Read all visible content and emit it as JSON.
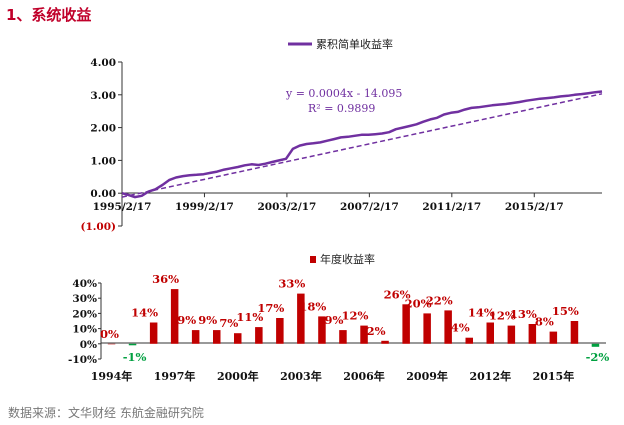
{
  "heading": "1、系统收益",
  "source_note": "数据来源：文华财经 东航金融研究院",
  "colors": {
    "heading": "#c0002a",
    "cumulative_line": "#7030a0",
    "positive_bar": "#c00000",
    "negative_bar": "#00a040",
    "positive_label": "#c00000",
    "negative_label": "#00a040",
    "neg_ylabel": "#c00000"
  },
  "chart_data": [
    {
      "type": "line",
      "legend": "累积简单收益率",
      "legend_position": "top-center",
      "equation": "y = 0.0004x   - 14.095",
      "r_squared": "R² = 0.9899",
      "x_range": [
        "1995-02-17",
        "2018-06-01"
      ],
      "ylim": [
        -1.0,
        4.0
      ],
      "y_ticks": [
        4.0,
        3.0,
        2.0,
        1.0,
        0.0,
        -1.0
      ],
      "y_tick_labels": [
        "4.00",
        "3.00",
        "2.00",
        "1.00",
        "0.00",
        "(1.00)"
      ],
      "x_tick_labels": [
        "1995/2/17",
        "1999/2/17",
        "2003/2/17",
        "2007/2/17",
        "2011/2/17",
        "2015/2/17"
      ],
      "trendline": {
        "slope_per_day": 0.0004,
        "intercept": -14.095,
        "style": "dashed"
      },
      "series": [
        {
          "name": "累积简单收益率",
          "x": [
            "1995-02-17",
            "1995-06-01",
            "1995-10-01",
            "1996-02-01",
            "1996-06-01",
            "1996-10-01",
            "1997-02-01",
            "1997-06-01",
            "1997-10-01",
            "1998-02-01",
            "1998-06-01",
            "1998-10-01",
            "1999-02-01",
            "1999-06-01",
            "1999-10-01",
            "2000-02-01",
            "2000-06-01",
            "2000-10-01",
            "2001-02-01",
            "2001-06-01",
            "2001-10-01",
            "2002-02-01",
            "2002-06-01",
            "2002-10-01",
            "2003-02-01",
            "2003-06-01",
            "2003-10-01",
            "2004-02-01",
            "2004-06-01",
            "2004-10-01",
            "2005-02-01",
            "2005-06-01",
            "2005-10-01",
            "2006-02-01",
            "2006-06-01",
            "2006-10-01",
            "2007-02-01",
            "2007-06-01",
            "2007-10-01",
            "2008-02-01",
            "2008-06-01",
            "2008-10-01",
            "2009-02-01",
            "2009-06-01",
            "2009-10-01",
            "2010-02-01",
            "2010-06-01",
            "2010-10-01",
            "2011-02-01",
            "2011-06-01",
            "2011-10-01",
            "2012-02-01",
            "2012-06-01",
            "2012-10-01",
            "2013-02-01",
            "2013-06-01",
            "2013-10-01",
            "2014-02-01",
            "2014-06-01",
            "2014-10-01",
            "2015-02-01",
            "2015-06-01",
            "2015-10-01",
            "2016-02-01",
            "2016-06-01",
            "2016-10-01",
            "2017-02-01",
            "2017-06-01",
            "2017-10-01",
            "2018-02-01",
            "2018-06-01"
          ],
          "y": [
            0.0,
            -0.05,
            -0.12,
            -0.08,
            0.05,
            0.12,
            0.25,
            0.4,
            0.48,
            0.52,
            0.55,
            0.56,
            0.58,
            0.62,
            0.66,
            0.72,
            0.76,
            0.8,
            0.85,
            0.88,
            0.86,
            0.9,
            0.95,
            1.0,
            1.05,
            1.35,
            1.45,
            1.5,
            1.52,
            1.55,
            1.6,
            1.65,
            1.7,
            1.72,
            1.75,
            1.78,
            1.78,
            1.8,
            1.82,
            1.86,
            1.95,
            2.0,
            2.05,
            2.1,
            2.18,
            2.25,
            2.3,
            2.4,
            2.45,
            2.48,
            2.55,
            2.6,
            2.62,
            2.65,
            2.68,
            2.7,
            2.72,
            2.75,
            2.78,
            2.82,
            2.85,
            2.88,
            2.9,
            2.92,
            2.95,
            2.97,
            3.0,
            3.02,
            3.05,
            3.08,
            3.1
          ]
        }
      ]
    },
    {
      "type": "bar",
      "legend": "年度收益率",
      "legend_position": "top-center",
      "ylim": [
        -10,
        40
      ],
      "y_ticks": [
        40,
        30,
        20,
        10,
        0,
        -10
      ],
      "y_tick_labels": [
        "40%",
        "30%",
        "20%",
        "10%",
        "0%",
        "-10%"
      ],
      "categories": [
        "1994",
        "1995",
        "1996",
        "1997",
        "1998",
        "1999",
        "2000",
        "2001",
        "2002",
        "2003",
        "2004",
        "2005",
        "2006",
        "2007",
        "2008",
        "2009",
        "2010",
        "2011",
        "2012",
        "2013",
        "2014",
        "2015",
        "2016",
        "2017"
      ],
      "x_tick_labels": [
        "1994年",
        "1997年",
        "2000年",
        "2003年",
        "2006年",
        "2009年",
        "2012年",
        "2015年"
      ],
      "x_tick_categories": [
        "1994",
        "1997",
        "2000",
        "2003",
        "2006",
        "2009",
        "2012",
        "2015"
      ],
      "values": [
        0,
        -1,
        14,
        36,
        9,
        9,
        7,
        11,
        17,
        33,
        18,
        9,
        12,
        2,
        26,
        20,
        22,
        4,
        14,
        12,
        13,
        8,
        15,
        -2
      ],
      "value_labels": [
        "0%",
        "-1%",
        "14%",
        "36%",
        "9%",
        "9%",
        "7%",
        "11%",
        "17%",
        "33%",
        "18%",
        "9%",
        "12%",
        "2%",
        "26%",
        "20%",
        "22%",
        "4%",
        "14%",
        "12%",
        "13%",
        "8%",
        "15%",
        "-2%"
      ]
    }
  ]
}
